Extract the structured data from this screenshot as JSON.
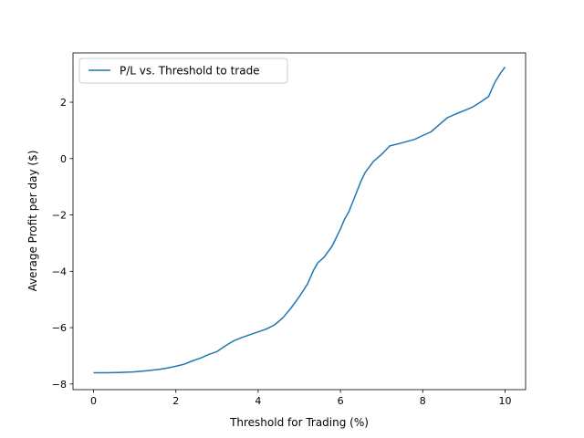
{
  "chart_data": {
    "type": "line",
    "xlabel": "Threshold for Trading (%)",
    "ylabel": "Average Profit per day ($)",
    "xlim": [
      -0.5,
      10.5
    ],
    "ylim": [
      -8.2,
      3.75
    ],
    "xticks": [
      0,
      2,
      4,
      6,
      8,
      10
    ],
    "yticks": [
      -8,
      -6,
      -4,
      -2,
      0,
      2
    ],
    "grid": false,
    "legend_position": "upper left",
    "series": [
      {
        "name": "P/L vs. Threshold to trade",
        "color": "#1f77b4",
        "x": [
          0,
          0.3,
          0.6,
          1.0,
          1.3,
          1.6,
          1.8,
          2.0,
          2.2,
          2.4,
          2.6,
          2.8,
          3.0,
          3.2,
          3.4,
          3.6,
          3.8,
          4.0,
          4.2,
          4.4,
          4.6,
          4.8,
          5.0,
          5.2,
          5.35,
          5.45,
          5.6,
          5.8,
          6.0,
          6.1,
          6.2,
          6.35,
          6.5,
          6.6,
          6.8,
          7.0,
          7.2,
          7.4,
          7.8,
          8.0,
          8.2,
          8.4,
          8.6,
          8.8,
          9.0,
          9.2,
          9.4,
          9.6,
          9.75,
          9.9,
          10.0
        ],
        "values": [
          -7.6,
          -7.6,
          -7.59,
          -7.57,
          -7.53,
          -7.48,
          -7.43,
          -7.37,
          -7.3,
          -7.18,
          -7.08,
          -6.95,
          -6.85,
          -6.65,
          -6.47,
          -6.35,
          -6.25,
          -6.15,
          -6.05,
          -5.9,
          -5.65,
          -5.3,
          -4.9,
          -4.45,
          -3.95,
          -3.7,
          -3.5,
          -3.1,
          -2.5,
          -2.15,
          -1.9,
          -1.35,
          -0.8,
          -0.5,
          -0.1,
          0.15,
          0.45,
          0.52,
          0.68,
          0.82,
          0.95,
          1.2,
          1.45,
          1.58,
          1.7,
          1.82,
          2.0,
          2.2,
          2.7,
          3.05,
          3.25
        ]
      }
    ]
  }
}
